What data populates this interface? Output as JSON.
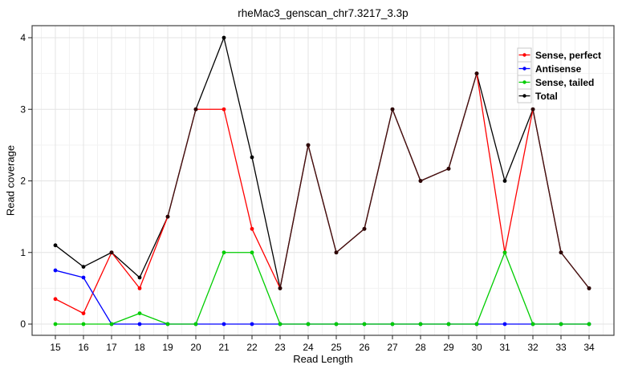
{
  "window": {
    "kind": "static-plot-image"
  },
  "chart_data": {
    "type": "line",
    "title": "rheMac3_genscan_chr7.3217_3.3p",
    "xlabel": "Read Length",
    "ylabel": "Read coverage",
    "x": [
      15,
      16,
      17,
      18,
      19,
      20,
      21,
      22,
      23,
      24,
      25,
      26,
      27,
      28,
      29,
      30,
      31,
      32,
      33,
      34
    ],
    "xlim": [
      15,
      34
    ],
    "ylim": [
      0,
      4
    ],
    "yticks": [
      0,
      1,
      2,
      3,
      4
    ],
    "grid": "major and minor gridlines on, very light gray, white panel background",
    "legend_position": "inset top-right",
    "series": [
      {
        "name": "Sense, perfect",
        "color": "#FF0000",
        "values": [
          0.35,
          0.15,
          1.0,
          0.5,
          1.5,
          3.0,
          3.0,
          1.33,
          0.5,
          2.5,
          1.0,
          1.33,
          3.0,
          2.0,
          2.17,
          3.5,
          1.0,
          3.0,
          1.0,
          0.5
        ]
      },
      {
        "name": "Antisense",
        "color": "#0000FF",
        "values": [
          0.75,
          0.65,
          0,
          0,
          0,
          0,
          0,
          0,
          0,
          0,
          0,
          0,
          0,
          0,
          0,
          0,
          0,
          0,
          0,
          0
        ]
      },
      {
        "name": "Sense, tailed",
        "color": "#00CD00",
        "values": [
          0,
          0,
          0,
          0.15,
          0,
          0,
          1.0,
          1.0,
          0,
          0,
          0,
          0,
          0,
          0,
          0,
          0,
          1.0,
          0,
          0,
          0
        ]
      },
      {
        "name": "Total",
        "color": "#000000",
        "values": [
          1.1,
          0.8,
          1.0,
          0.65,
          1.5,
          3.0,
          4.0,
          2.33,
          0.5,
          2.5,
          1.0,
          1.33,
          3.0,
          2.0,
          2.17,
          3.5,
          2.0,
          3.0,
          1.0,
          0.5
        ]
      }
    ],
    "overlap_line_color": "#4c0e0e",
    "overlap_dot_color": "#2e0505"
  },
  "colors": {
    "panel_background": "#FFFFFF",
    "grid_major": "#e3e3e3",
    "grid_minor": "#f2f2f2",
    "frame": "#404040",
    "tick": "#222222",
    "legend_key_border": "#c9c9c9",
    "legend_key_fill": "#FFFFFF"
  }
}
